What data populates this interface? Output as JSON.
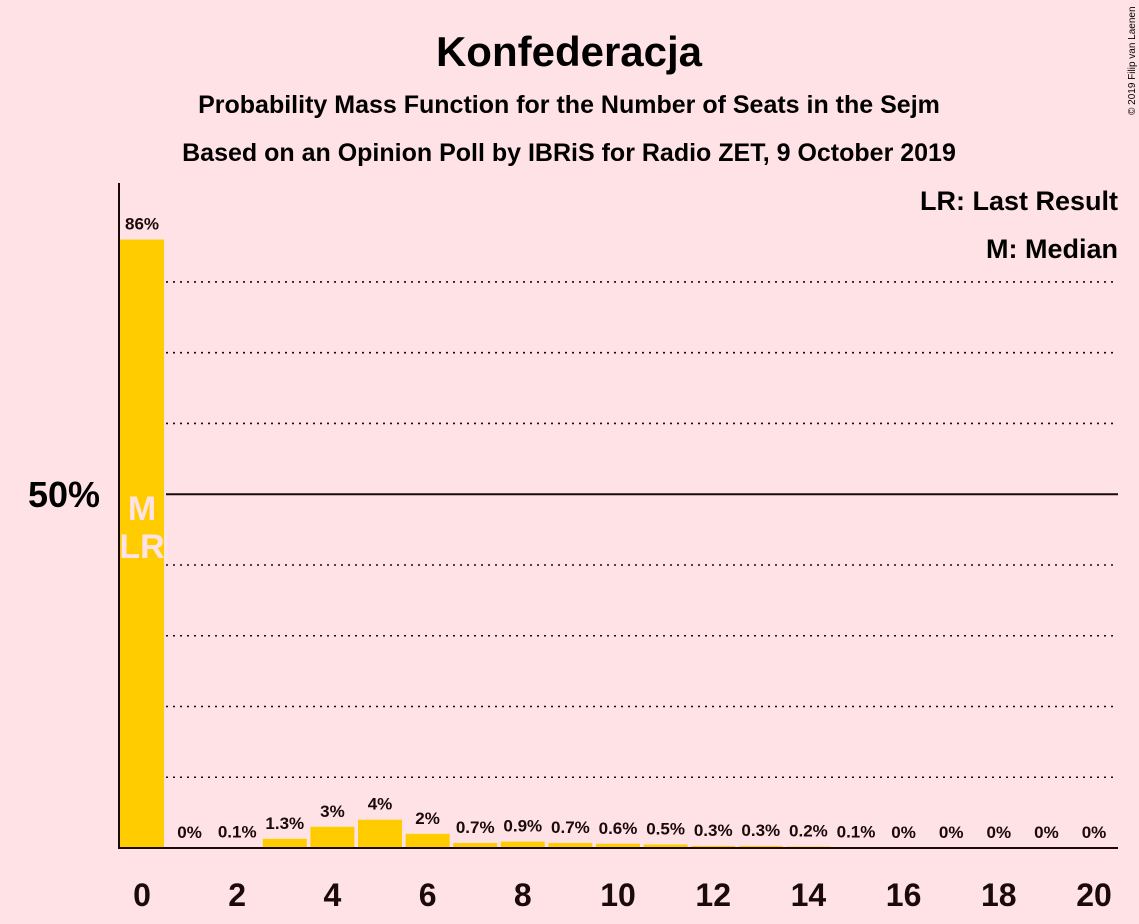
{
  "chart_data": {
    "type": "bar",
    "title": "Konfederacja",
    "subtitle_lines": [
      "Probability Mass Function for the Number of Seats in the Sejm",
      "Based on an Opinion Poll by IBRiS for Radio ZET, 9 October 2019"
    ],
    "copyright": "© 2019 Filip van Laenen",
    "legend": [
      "LR: Last Result",
      "M: Median"
    ],
    "legend_position": "top-right",
    "x": [
      0,
      1,
      2,
      3,
      4,
      5,
      6,
      7,
      8,
      9,
      10,
      11,
      12,
      13,
      14,
      15,
      16,
      17,
      18,
      19,
      20
    ],
    "values": [
      86,
      0,
      0.1,
      1.3,
      3,
      4,
      2,
      0.7,
      0.9,
      0.7,
      0.6,
      0.5,
      0.3,
      0.3,
      0.2,
      0.1,
      0,
      0,
      0,
      0,
      0
    ],
    "labels": [
      "86%",
      "0%",
      "0.1%",
      "1.3%",
      "3%",
      "4%",
      "2%",
      "0.7%",
      "0.9%",
      "0.7%",
      "0.6%",
      "0.5%",
      "0.3%",
      "0.3%",
      "0.2%",
      "0.1%",
      "0%",
      "0%",
      "0%",
      "0%",
      "0%"
    ],
    "xticks": [
      0,
      2,
      4,
      6,
      8,
      10,
      12,
      14,
      16,
      18,
      20
    ],
    "ytick_label": "50%",
    "ytick_value": 50,
    "ylim": [
      0,
      93
    ],
    "gridlines": [
      10,
      20,
      30,
      40,
      60,
      70,
      80
    ],
    "median_marker": "M",
    "last_result_marker": "LR",
    "marker_seat": 0,
    "colors": {
      "background": "#FFE2E6",
      "bar": "#FFCC00",
      "text": "#1a0a0a",
      "marker_text": "#FFE2E6"
    }
  }
}
